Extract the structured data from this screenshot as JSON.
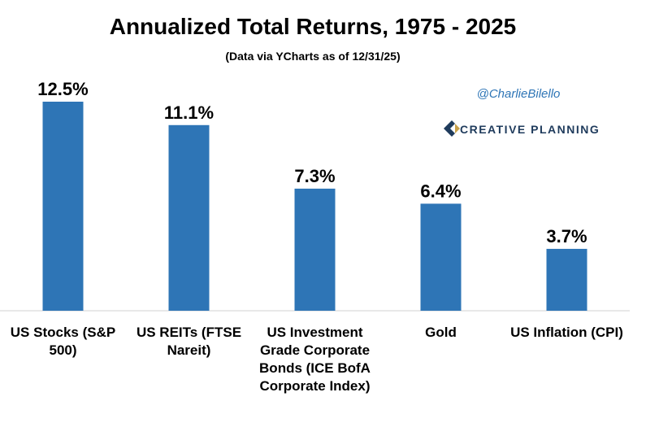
{
  "chart_data": {
    "type": "bar",
    "title": "Annualized Total Returns, 1975 - 2025",
    "subtitle": "(Data via YCharts as of 12/31/25)",
    "annotations": [
      "@CharlieBilello",
      "CREATIVE PLANNING"
    ],
    "categories": [
      "US Stocks (S&P 500)",
      "US REITs (FTSE Nareit)",
      "US Investment Grade Corporate Bonds (ICE BofA Corporate Index)",
      "Gold",
      "US Inflation (CPI)"
    ],
    "values": [
      12.5,
      11.1,
      7.3,
      6.4,
      3.7
    ],
    "value_labels": [
      "12.5%",
      "11.1%",
      "7.3%",
      "6.4%",
      "3.7%"
    ],
    "color": "#2e75b6"
  }
}
